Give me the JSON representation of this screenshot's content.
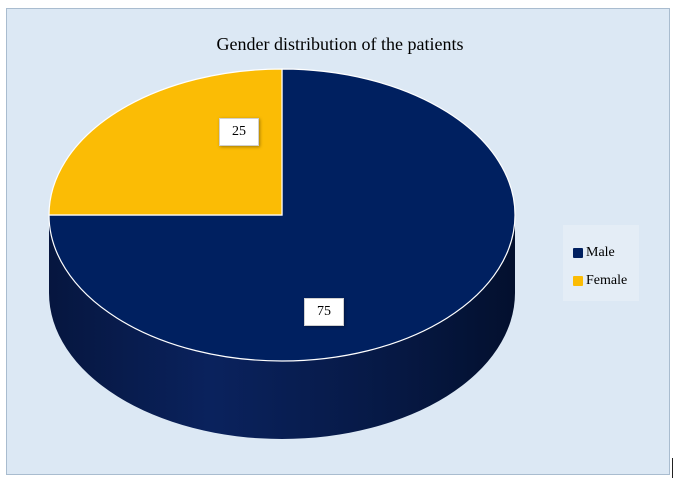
{
  "chart_data": {
    "type": "pie",
    "title": "Gender distribution of  the patients",
    "categories": [
      "Male",
      "Female"
    ],
    "values": [
      75,
      25
    ],
    "colors": [
      "#002060",
      "#fbbc05"
    ],
    "legend_position": "right",
    "data_labels": [
      "75",
      "25"
    ],
    "style": "3d"
  }
}
